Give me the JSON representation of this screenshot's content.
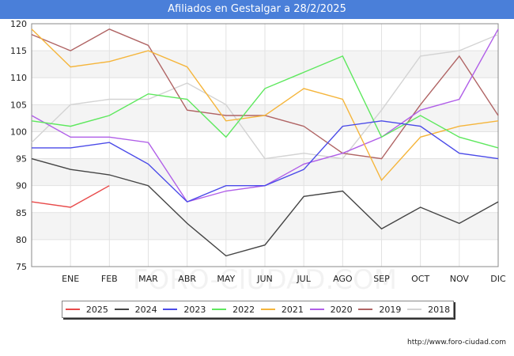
{
  "source": "http://www.foro-ciudad.com",
  "watermark": "FORO-CIUDAD.COM",
  "chart_data": {
    "type": "line",
    "title": "Afiliados en Gestalgar a 28/2/2025",
    "categories": [
      "",
      "ENE",
      "FEB",
      "MAR",
      "ABR",
      "MAY",
      "JUN",
      "JUL",
      "AGO",
      "SEP",
      "OCT",
      "NOV",
      "DIC"
    ],
    "ylim": [
      75,
      120
    ],
    "yticks": [
      75,
      80,
      85,
      90,
      95,
      100,
      105,
      110,
      115,
      120
    ],
    "grid": true,
    "legend_position": "bottom",
    "series": [
      {
        "name": "2025",
        "color": "#e84a4a",
        "values": [
          87,
          86,
          90,
          null,
          null,
          null,
          null,
          null,
          null,
          null,
          null,
          null,
          null
        ]
      },
      {
        "name": "2024",
        "color": "#444444",
        "values": [
          95,
          93,
          92,
          90,
          83,
          77,
          79,
          88,
          89,
          82,
          86,
          83,
          87
        ]
      },
      {
        "name": "2023",
        "color": "#4a4ae8",
        "values": [
          97,
          97,
          98,
          94,
          87,
          90,
          90,
          93,
          101,
          102,
          101,
          96,
          95
        ]
      },
      {
        "name": "2022",
        "color": "#5ee85e",
        "values": [
          102,
          101,
          103,
          107,
          106,
          99,
          108,
          111,
          114,
          99,
          103,
          99,
          97
        ]
      },
      {
        "name": "2021",
        "color": "#f5b53b",
        "values": [
          119,
          112,
          113,
          115,
          112,
          102,
          103,
          108,
          106,
          91,
          99,
          101,
          102
        ]
      },
      {
        "name": "2020",
        "color": "#b05ee8",
        "values": [
          103,
          99,
          99,
          98,
          87,
          89,
          90,
          94,
          96,
          99,
          104,
          106,
          119
        ]
      },
      {
        "name": "2019",
        "color": "#b06464",
        "values": [
          118,
          115,
          119,
          116,
          104,
          103,
          103,
          101,
          96,
          95,
          105,
          114,
          103
        ]
      },
      {
        "name": "2018",
        "color": "#d3d3d3",
        "values": [
          98,
          105,
          106,
          106,
          109,
          105,
          95,
          96,
          95,
          104,
          114,
          115,
          118
        ]
      }
    ]
  }
}
